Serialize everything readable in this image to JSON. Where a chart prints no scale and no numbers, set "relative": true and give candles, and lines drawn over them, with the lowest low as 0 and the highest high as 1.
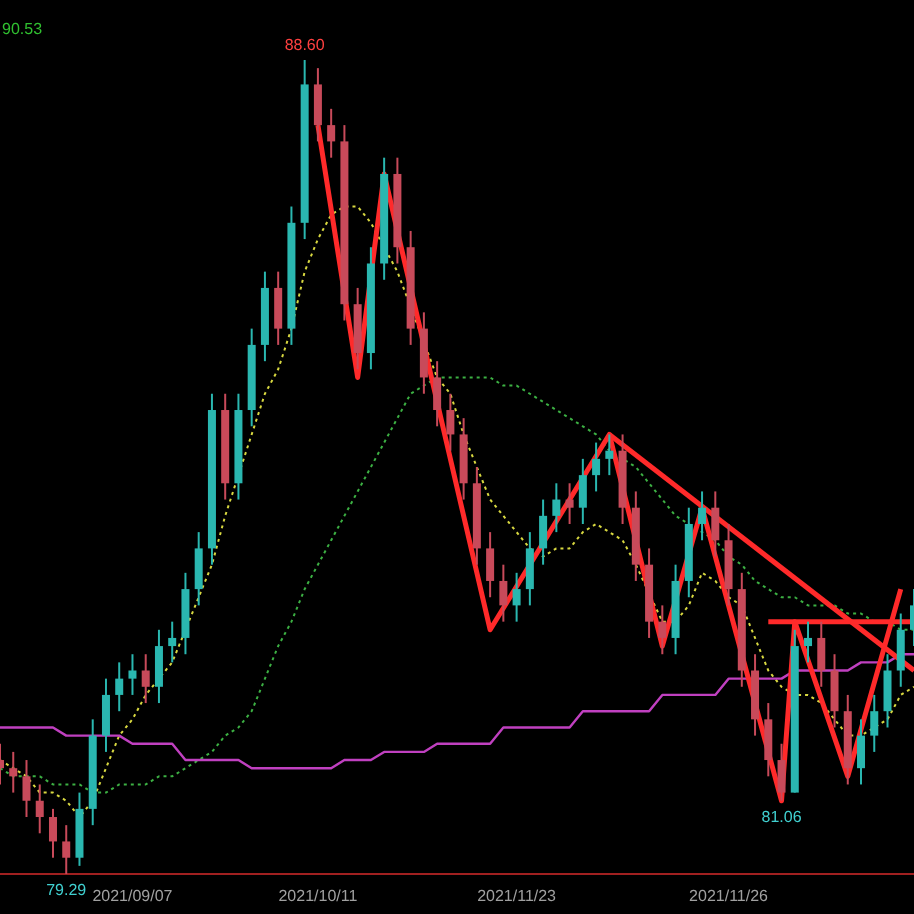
{
  "chart_data": {
    "type": "candlestick",
    "relative": true,
    "tick_labels": "x",
    "categories": [
      null,
      null,
      null,
      null,
      null,
      null,
      null,
      null,
      null,
      null,
      "2021/09/07",
      null,
      null,
      null,
      null,
      null,
      null,
      null,
      null,
      null,
      null,
      null,
      null,
      null,
      "2021/10/11",
      null,
      null,
      null,
      null,
      null,
      null,
      null,
      null,
      null,
      null,
      null,
      null,
      null,
      null,
      "2021/11/23",
      null,
      null,
      null,
      null,
      null,
      null,
      null,
      null,
      null,
      null,
      null,
      null,
      null,
      null,
      null,
      "2021/11/26",
      null,
      null,
      null,
      null,
      null,
      null,
      null,
      null,
      null,
      null,
      null,
      null,
      null,
      null
    ],
    "ohlc": [
      [
        0.14,
        0.16,
        0.11,
        0.13
      ],
      [
        0.13,
        0.15,
        0.1,
        0.12
      ],
      [
        0.12,
        0.14,
        0.07,
        0.09
      ],
      [
        0.09,
        0.11,
        0.05,
        0.07
      ],
      [
        0.07,
        0.08,
        0.02,
        0.04
      ],
      [
        0.04,
        0.06,
        0,
        0.02
      ],
      [
        0.02,
        0.1,
        0.01,
        0.08
      ],
      [
        0.08,
        0.19,
        0.06,
        0.17
      ],
      [
        0.17,
        0.24,
        0.15,
        0.22
      ],
      [
        0.22,
        0.26,
        0.2,
        0.24
      ],
      [
        0.24,
        0.27,
        0.22,
        0.25
      ],
      [
        0.25,
        0.27,
        0.21,
        0.23
      ],
      [
        0.23,
        0.3,
        0.21,
        0.28
      ],
      [
        0.28,
        0.31,
        0.26,
        0.29
      ],
      [
        0.29,
        0.37,
        0.27,
        0.35
      ],
      [
        0.35,
        0.42,
        0.33,
        0.4
      ],
      [
        0.4,
        0.59,
        0.38,
        0.57
      ],
      [
        0.57,
        0.59,
        0.46,
        0.48
      ],
      [
        0.48,
        0.59,
        0.46,
        0.57
      ],
      [
        0.57,
        0.67,
        0.55,
        0.65
      ],
      [
        0.65,
        0.74,
        0.63,
        0.72
      ],
      [
        0.72,
        0.74,
        0.65,
        0.67
      ],
      [
        0.67,
        0.82,
        0.65,
        0.8
      ],
      [
        0.8,
        1,
        0.78,
        0.97
      ],
      [
        0.97,
        0.99,
        0.9,
        0.92
      ],
      [
        0.92,
        0.94,
        0.88,
        0.9
      ],
      [
        0.9,
        0.92,
        0.68,
        0.7
      ],
      [
        0.7,
        0.72,
        0.62,
        0.64
      ],
      [
        0.64,
        0.77,
        0.62,
        0.75
      ],
      [
        0.75,
        0.88,
        0.73,
        0.86
      ],
      [
        0.86,
        0.88,
        0.75,
        0.77
      ],
      [
        0.77,
        0.79,
        0.65,
        0.67
      ],
      [
        0.67,
        0.69,
        0.59,
        0.61
      ],
      [
        0.61,
        0.63,
        0.55,
        0.57
      ],
      [
        0.57,
        0.59,
        0.52,
        0.54
      ],
      [
        0.54,
        0.56,
        0.46,
        0.48
      ],
      [
        0.48,
        0.5,
        0.38,
        0.4
      ],
      [
        0.4,
        0.42,
        0.34,
        0.36
      ],
      [
        0.36,
        0.38,
        0.31,
        0.33
      ],
      [
        0.33,
        0.37,
        0.31,
        0.35
      ],
      [
        0.35,
        0.42,
        0.33,
        0.4
      ],
      [
        0.4,
        0.46,
        0.38,
        0.44
      ],
      [
        0.44,
        0.48,
        0.42,
        0.46
      ],
      [
        0.46,
        0.48,
        0.43,
        0.45
      ],
      [
        0.45,
        0.51,
        0.43,
        0.49
      ],
      [
        0.49,
        0.53,
        0.47,
        0.51
      ],
      [
        0.51,
        0.54,
        0.49,
        0.52
      ],
      [
        0.52,
        0.54,
        0.43,
        0.45
      ],
      [
        0.45,
        0.47,
        0.36,
        0.38
      ],
      [
        0.38,
        0.4,
        0.29,
        0.31
      ],
      [
        0.31,
        0.33,
        0.27,
        0.29
      ],
      [
        0.29,
        0.38,
        0.27,
        0.36
      ],
      [
        0.36,
        0.45,
        0.34,
        0.43
      ],
      [
        0.43,
        0.47,
        0.41,
        0.45
      ],
      [
        0.45,
        0.47,
        0.39,
        0.41
      ],
      [
        0.41,
        0.43,
        0.33,
        0.35
      ],
      [
        0.35,
        0.37,
        0.23,
        0.25
      ],
      [
        0.25,
        0.27,
        0.17,
        0.19
      ],
      [
        0.19,
        0.21,
        0.12,
        0.14
      ],
      [
        0.14,
        0.16,
        0.09,
        0.1
      ],
      [
        0.1,
        0.3,
        0.1,
        0.28
      ],
      [
        0.28,
        0.31,
        0.26,
        0.29
      ],
      [
        0.29,
        0.31,
        0.23,
        0.25
      ],
      [
        0.25,
        0.27,
        0.18,
        0.2
      ],
      [
        0.2,
        0.22,
        0.11,
        0.13
      ],
      [
        0.13,
        0.19,
        0.11,
        0.17
      ],
      [
        0.17,
        0.22,
        0.15,
        0.2
      ],
      [
        0.2,
        0.27,
        0.18,
        0.25
      ],
      [
        0.25,
        0.32,
        0.23,
        0.3
      ],
      [
        0.3,
        0.35,
        0.28,
        0.33
      ]
    ],
    "colors": [
      "#c84a5a",
      "#c84a5a",
      "#c84a5a",
      "#c84a5a",
      "#c84a5a",
      "#c84a5a",
      "#2ab7b0",
      "#2ab7b0",
      "#2ab7b0",
      "#2ab7b0",
      "#2ab7b0",
      "#c84a5a",
      "#2ab7b0",
      "#2ab7b0",
      "#2ab7b0",
      "#2ab7b0",
      "#2ab7b0",
      "#c84a5a",
      "#2ab7b0",
      "#2ab7b0",
      "#2ab7b0",
      "#c84a5a",
      "#2ab7b0",
      "#2ab7b0",
      "#c84a5a",
      "#c84a5a",
      "#c84a5a",
      "#c84a5a",
      "#2ab7b0",
      "#2ab7b0",
      "#c84a5a",
      "#c84a5a",
      "#c84a5a",
      "#c84a5a",
      "#c84a5a",
      "#c84a5a",
      "#c84a5a",
      "#c84a5a",
      "#c84a5a",
      "#2ab7b0",
      "#2ab7b0",
      "#2ab7b0",
      "#2ab7b0",
      "#c84a5a",
      "#2ab7b0",
      "#2ab7b0",
      "#2ab7b0",
      "#c84a5a",
      "#c84a5a",
      "#c84a5a",
      "#c84a5a",
      "#2ab7b0",
      "#2ab7b0",
      "#2ab7b0",
      "#c84a5a",
      "#c84a5a",
      "#c84a5a",
      "#c84a5a",
      "#c84a5a",
      "#c84a5a",
      "#2ab7b0",
      "#2ab7b0",
      "#c84a5a",
      "#c84a5a",
      "#c84a5a",
      "#2ab7b0",
      "#2ab7b0",
      "#2ab7b0",
      "#2ab7b0",
      "#2ab7b0"
    ],
    "series": [
      {
        "type": "line",
        "color": "#d8d840",
        "line_style": "dotted",
        "values": [
          0.14,
          0.13,
          0.12,
          0.1,
          0.1,
          0.09,
          0.07,
          0.09,
          0.13,
          0.17,
          0.19,
          0.22,
          0.24,
          0.26,
          null,
          0.34,
          0.38,
          0.44,
          null,
          0.54,
          0.59,
          0.62,
          0.67,
          0.74,
          0.78,
          0.81,
          0.82,
          0.82,
          0.8,
          0.77,
          0.74,
          null,
          null,
          0.61,
          0.59,
          0.54,
          0.5,
          0.46,
          0.44,
          0.42,
          0.4,
          0.39,
          0.4,
          0.4,
          0.42,
          0.43,
          0.42,
          0.41,
          0.38,
          null,
          0.31,
          0.31,
          0.33,
          0.37,
          0.36,
          0.34,
          0.33,
          0.29,
          0.25,
          0.23,
          0.22,
          0.22,
          0.21,
          0.19,
          0.17,
          0.17,
          0.18,
          0.19,
          0.22,
          0.23
        ]
      },
      {
        "type": "line",
        "color": "#3cb043",
        "line_style": "dotted",
        "values": [
          0.13,
          0.12,
          0.12,
          0.12,
          0.11,
          0.11,
          0.11,
          0.1,
          0.1,
          0.11,
          0.11,
          0.11,
          0.12,
          0.12,
          0.13,
          0.14,
          0.15,
          0.17,
          0.18,
          0.2,
          0.24,
          0.28,
          0.31,
          0.35,
          0.38,
          0.41,
          0.44,
          0.47,
          0.5,
          0.53,
          0.56,
          0.59,
          0.6,
          0.61,
          0.61,
          0.61,
          0.61,
          0.61,
          0.6,
          0.6,
          0.59,
          0.58,
          0.57,
          0.56,
          0.55,
          0.54,
          0.52,
          0.51,
          0.5,
          0.48,
          0.46,
          0.44,
          0.43,
          0.42,
          0.41,
          0.39,
          0.38,
          0.36,
          0.35,
          0.34,
          0.34,
          0.33,
          0.33,
          0.33,
          0.32,
          0.32,
          0.31,
          0.31,
          0.3,
          0.3
        ]
      },
      {
        "type": "line",
        "color": "#c040c0",
        "line_style": "solid",
        "values": [
          0.18,
          0.18,
          0.18,
          0.18,
          0.18,
          0.17,
          0.17,
          0.17,
          0.17,
          0.17,
          0.16,
          0.16,
          0.16,
          0.16,
          0.14,
          0.14,
          0.14,
          0.14,
          0.14,
          0.13,
          0.13,
          0.13,
          0.13,
          0.13,
          0.13,
          0.13,
          0.14,
          0.14,
          0.14,
          0.15,
          0.15,
          0.15,
          0.15,
          0.16,
          0.16,
          0.16,
          0.16,
          0.16,
          0.18,
          0.18,
          0.18,
          0.18,
          0.18,
          0.18,
          0.2,
          0.2,
          0.2,
          0.2,
          0.2,
          0.2,
          0.22,
          0.22,
          0.22,
          0.22,
          0.22,
          0.24,
          0.24,
          0.24,
          0.24,
          0.24,
          0.25,
          0.25,
          0.25,
          0.25,
          0.25,
          0.26,
          0.26,
          0.26,
          0.27,
          0.27
        ]
      },
      {
        "type": "line",
        "color": "#ff2a2a",
        "line_style": "solid",
        "values": [
          null,
          null,
          null,
          null,
          null,
          null,
          null,
          null,
          null,
          null,
          null,
          null,
          null,
          null,
          null,
          null,
          null,
          null,
          null,
          null,
          null,
          null,
          null,
          null,
          0.92,
          null,
          null,
          0.61,
          null,
          0.86,
          null,
          null,
          null,
          null,
          null,
          null,
          null,
          0.3,
          null,
          null,
          null,
          null,
          null,
          null,
          null,
          null,
          0.54,
          null,
          null,
          null,
          0.28,
          null,
          null,
          0.45,
          null,
          null,
          null,
          null,
          null,
          0.09,
          0.31,
          null,
          null,
          null,
          0.12,
          null,
          null,
          null,
          0.35,
          null
        ]
      },
      {
        "type": "line",
        "color": "#ff2a2a",
        "line_style": "solid",
        "values": [
          null,
          null,
          null,
          null,
          null,
          null,
          null,
          null,
          null,
          null,
          null,
          null,
          null,
          null,
          null,
          null,
          null,
          null,
          null,
          null,
          null,
          null,
          null,
          null,
          null,
          null,
          null,
          null,
          null,
          null,
          null,
          null,
          null,
          null,
          null,
          null,
          null,
          null,
          null,
          null,
          null,
          null,
          null,
          null,
          null,
          null,
          0.54,
          null,
          null,
          null,
          null,
          null,
          null,
          null,
          null,
          null,
          null,
          null,
          null,
          null,
          null,
          null,
          null,
          null,
          null,
          null,
          null,
          null,
          null,
          0.25
        ]
      },
      {
        "type": "line",
        "color": "#ff2a2a",
        "line_style": "solid",
        "values": [
          null,
          null,
          null,
          null,
          null,
          null,
          null,
          null,
          null,
          null,
          null,
          null,
          null,
          null,
          null,
          null,
          null,
          null,
          null,
          null,
          null,
          null,
          null,
          null,
          null,
          null,
          null,
          null,
          null,
          null,
          null,
          null,
          null,
          null,
          null,
          null,
          null,
          null,
          null,
          null,
          null,
          null,
          null,
          null,
          null,
          null,
          null,
          null,
          null,
          null,
          null,
          null,
          null,
          null,
          null,
          null,
          null,
          null,
          0.31,
          null,
          null,
          null,
          null,
          null,
          null,
          null,
          null,
          null,
          null,
          0.31
        ]
      }
    ],
    "annotations": [
      "90.53",
      {
        "text": "88.60",
        "y": 1
      },
      {
        "text": "79.29",
        "y": 0
      },
      {
        "text": "81.06",
        "y": 0.09
      }
    ]
  }
}
